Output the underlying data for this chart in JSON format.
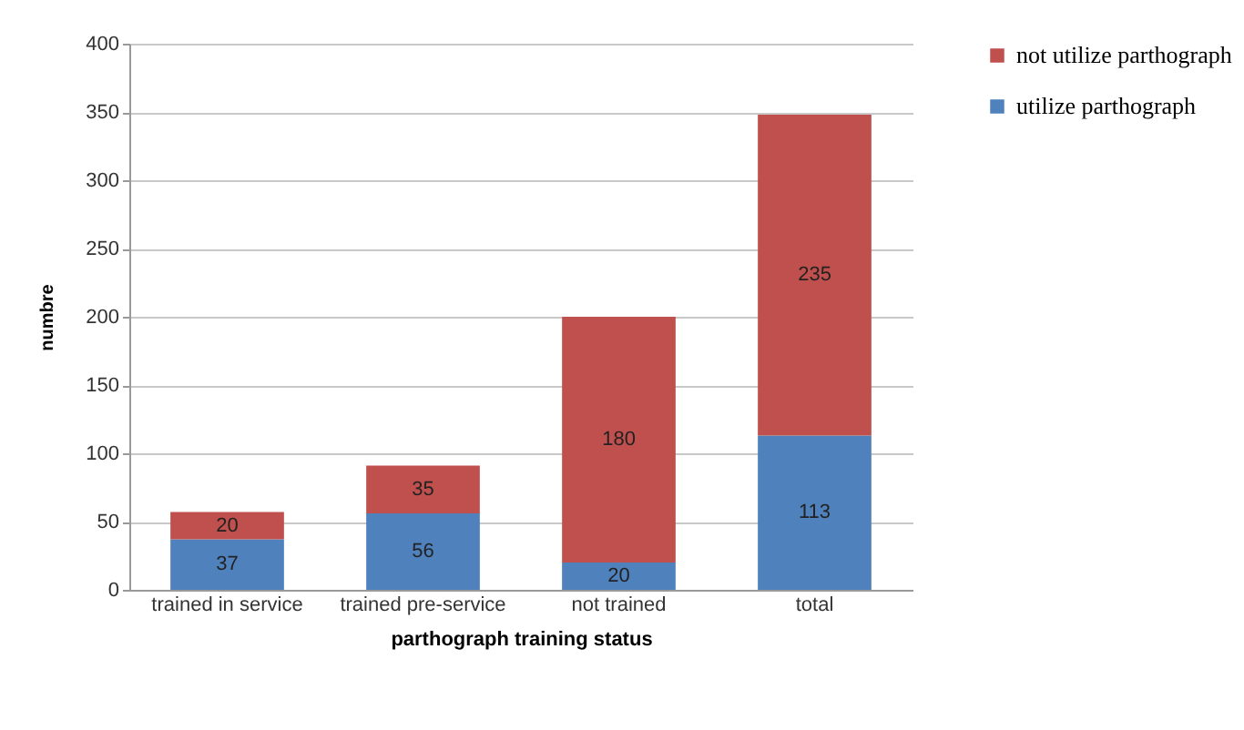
{
  "chart_data": {
    "type": "bar",
    "xlabel": "parthograph training  status",
    "ylabel": "numbre",
    "categories": [
      "trained in service",
      "trained pre-service",
      "not trained",
      "total"
    ],
    "stacked": true,
    "series": [
      {
        "name": "utilize parthograph",
        "color": "#4f81bd",
        "values": [
          37,
          56,
          20,
          113
        ]
      },
      {
        "name": "not utilize parthograph",
        "color": "#c0504d",
        "values": [
          20,
          35,
          180,
          235
        ]
      }
    ],
    "ylim": [
      0,
      400
    ],
    "yticks": [
      0,
      50,
      100,
      150,
      200,
      250,
      300,
      350,
      400
    ],
    "grid": "y",
    "legend": "right",
    "data_labels": true
  }
}
